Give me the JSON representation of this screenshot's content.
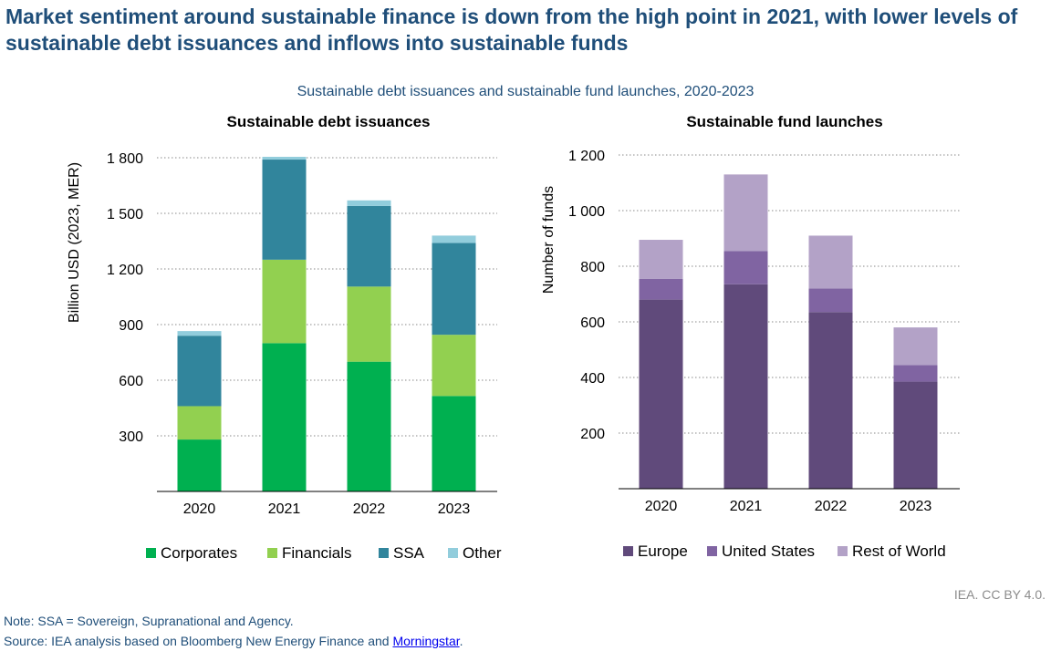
{
  "title": "Market sentiment around sustainable finance is down from the high point in 2021, with lower levels of sustainable debt issuances and inflows into sustainable funds",
  "subtitle": "Sustainable debt issuances and sustainable fund launches, 2020-2023",
  "note": "Note: SSA = Sovereign, Supranational and Agency.",
  "source_prefix": "Source: IEA analysis based on Bloomberg New Energy Finance and ",
  "source_link": "Morningstar",
  "source_suffix": ".",
  "credit": "IEA. CC BY 4.0.",
  "chart_data": [
    {
      "type": "bar",
      "stacked": true,
      "title": "Sustainable debt issuances",
      "ylabel": "Billion USD (2023, MER)",
      "xlabel": "",
      "ylim": [
        0,
        1800
      ],
      "yticks": [
        300,
        600,
        900,
        1200,
        1500,
        1800
      ],
      "ytick_labels": [
        "300",
        "600",
        "900",
        "1 200",
        "1 500",
        "1 800"
      ],
      "grid": true,
      "legend": "bottom",
      "categories": [
        "2020",
        "2021",
        "2022",
        "2023"
      ],
      "series": [
        {
          "name": "Corporates",
          "color": "#00b050",
          "values": [
            280,
            800,
            700,
            515
          ]
        },
        {
          "name": "Financials",
          "color": "#92d050",
          "values": [
            180,
            450,
            405,
            330
          ]
        },
        {
          "name": "SSA",
          "color": "#31859c",
          "values": [
            380,
            540,
            435,
            495
          ]
        },
        {
          "name": "Other",
          "color": "#92cddc",
          "values": [
            25,
            15,
            30,
            40
          ]
        }
      ]
    },
    {
      "type": "bar",
      "stacked": true,
      "title": "Sustainable fund launches",
      "ylabel": "Number of funds",
      "xlabel": "",
      "ylim": [
        0,
        1200
      ],
      "yticks": [
        200,
        400,
        600,
        800,
        1000,
        1200
      ],
      "ytick_labels": [
        "200",
        "400",
        "600",
        "800",
        "1 000",
        "1 200"
      ],
      "grid": true,
      "legend": "bottom",
      "categories": [
        "2020",
        "2021",
        "2022",
        "2023"
      ],
      "series": [
        {
          "name": "Europe",
          "color": "#604a7b",
          "values": [
            680,
            735,
            635,
            385
          ]
        },
        {
          "name": "United States",
          "color": "#8064a2",
          "values": [
            75,
            120,
            85,
            60
          ]
        },
        {
          "name": "Rest of World",
          "color": "#b3a2c7",
          "values": [
            140,
            275,
            190,
            135
          ]
        }
      ]
    }
  ]
}
